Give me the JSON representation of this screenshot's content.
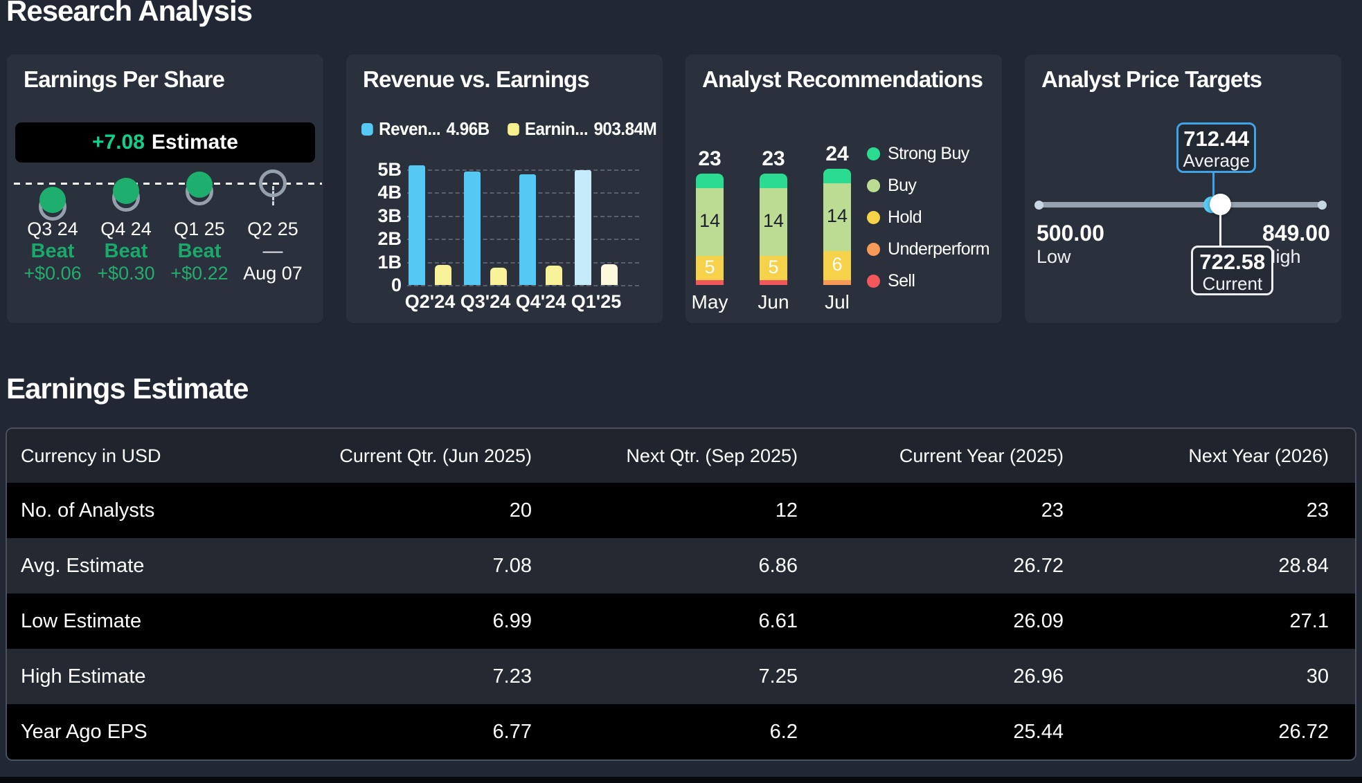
{
  "page": {
    "title": "Research Analysis"
  },
  "eps": {
    "title": "Earnings Per Share",
    "badge_value": "+7.08",
    "badge_label": "Estimate",
    "quarters": [
      {
        "label": "Q3 24",
        "status": "Beat",
        "value": "+$0.06",
        "state": "beat",
        "dot_offset": 24
      },
      {
        "label": "Q4 24",
        "status": "Beat",
        "value": "+$0.30",
        "state": "beat",
        "dot_offset": 11
      },
      {
        "label": "Q1 25",
        "status": "Beat",
        "value": "+$0.22",
        "state": "beat",
        "dot_offset": 2
      },
      {
        "label": "Q2 25",
        "status": "—",
        "value": "Aug 07",
        "state": "upcoming",
        "dot_offset": 0
      }
    ]
  },
  "revenue": {
    "title": "Revenue vs. Earnings",
    "legend": [
      {
        "label": "Reven...",
        "value": "4.96B",
        "color": "#55c8f3"
      },
      {
        "label": "Earnin...",
        "value": "903.84M",
        "color": "#f5f08d"
      }
    ],
    "chart_data": {
      "type": "bar",
      "categories": [
        "Q2'24",
        "Q3'24",
        "Q4'24",
        "Q1'25"
      ],
      "series": [
        {
          "name": "Revenue",
          "values": [
            5.19,
            4.91,
            4.79,
            4.96
          ],
          "unit": "B",
          "color": "#55c8f3",
          "highlight_color": "#c6ebfa"
        },
        {
          "name": "Earnings",
          "values": [
            0.87,
            0.76,
            0.85,
            0.9
          ],
          "unit": "B",
          "color": "#f8f398",
          "highlight_color": "#fcf9dc"
        }
      ],
      "highlight_index": 3,
      "ylim": [
        0,
        5
      ],
      "yticks": [
        "0",
        "1B",
        "2B",
        "3B",
        "4B",
        "5B"
      ],
      "grid": "dashed"
    }
  },
  "recommendations": {
    "title": "Analyst Recommendations",
    "chart_data": {
      "type": "stacked_bar",
      "categories": [
        "May",
        "Jun",
        "Jul"
      ],
      "totals": [
        23,
        23,
        24
      ],
      "series": [
        {
          "name": "Strong Buy",
          "color": "#2bdb92",
          "values": [
            3,
            3,
            3
          ],
          "show_label": false
        },
        {
          "name": "Buy",
          "color": "#bcdc94",
          "values": [
            14,
            14,
            14
          ],
          "show_label": true,
          "label_color": "#1c212b"
        },
        {
          "name": "Hold",
          "color": "#f6d14a",
          "values": [
            5,
            5,
            6
          ],
          "show_label": true,
          "label_color": "#ffffff"
        },
        {
          "name": "Underperform",
          "color": "#f79a58",
          "values": [
            0,
            0,
            1
          ],
          "show_label": false
        },
        {
          "name": "Sell",
          "color": "#f2575c",
          "values": [
            1,
            1,
            0
          ],
          "show_label": false
        }
      ],
      "legend_position": "right"
    }
  },
  "targets": {
    "title": "Analyst Price Targets",
    "low": {
      "value": "500.00",
      "label": "Low",
      "num": 500.0
    },
    "high": {
      "value": "849.00",
      "label": "High",
      "num": 849.0
    },
    "average": {
      "value": "712.44",
      "label": "Average",
      "num": 712.44
    },
    "current": {
      "value": "722.58",
      "label": "Current",
      "num": 722.58
    },
    "accent_color": "#3fa3e6"
  },
  "estimates": {
    "title": "Earnings Estimate",
    "columns": [
      "Currency in USD",
      "Current Qtr. (Jun 2025)",
      "Next Qtr. (Sep 2025)",
      "Current Year (2025)",
      "Next Year (2026)"
    ],
    "rows": [
      {
        "label": "No. of Analysts",
        "values": [
          "20",
          "12",
          "23",
          "23"
        ]
      },
      {
        "label": "Avg. Estimate",
        "values": [
          "7.08",
          "6.86",
          "26.72",
          "28.84"
        ]
      },
      {
        "label": "Low Estimate",
        "values": [
          "6.99",
          "6.61",
          "26.09",
          "27.1"
        ]
      },
      {
        "label": "High Estimate",
        "values": [
          "7.23",
          "7.25",
          "26.96",
          "30"
        ]
      },
      {
        "label": "Year Ago EPS",
        "values": [
          "6.77",
          "6.2",
          "25.44",
          "26.72"
        ]
      }
    ]
  }
}
